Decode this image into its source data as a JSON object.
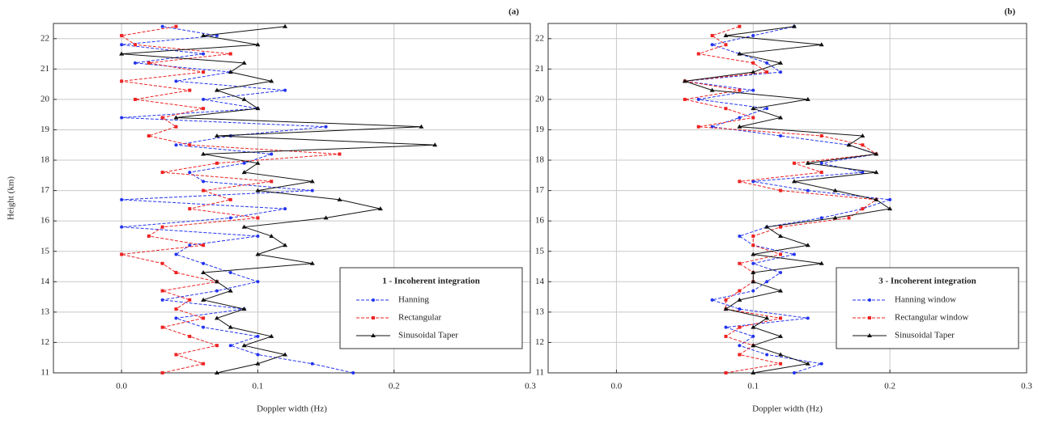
{
  "chart_data": [
    {
      "type": "line",
      "panel_label": "(a)",
      "xlabel": "Doppler width (Hz)",
      "ylabel": "Height (km)",
      "legend_title": "1 - Incoherent integration",
      "legend": "lower right",
      "grid": true,
      "xlim": [
        -0.05,
        0.3
      ],
      "xticks": [
        {
          "value": 0,
          "label": "0.0"
        },
        0.1,
        0.2,
        0.3
      ],
      "ylim": [
        11,
        22.5
      ],
      "yticks": [
        11,
        12,
        13,
        14,
        15,
        16,
        17,
        18,
        19,
        20,
        21,
        22
      ],
      "y": [
        11,
        11.3,
        11.6,
        11.9,
        12.2,
        12.5,
        12.8,
        13.1,
        13.4,
        13.7,
        14,
        14.3,
        14.6,
        14.9,
        15.2,
        15.5,
        15.8,
        16.1,
        16.4,
        16.7,
        17,
        17.3,
        17.6,
        17.9,
        18.2,
        18.5,
        18.8,
        19.1,
        19.4,
        19.7,
        20,
        20.3,
        20.6,
        20.9,
        21.2,
        21.5,
        21.8,
        22.1,
        22.4
      ],
      "series": [
        {
          "name": "Hanning",
          "color": "#2233ee",
          "values": [
            0.17,
            0.14,
            0.1,
            0.08,
            0.1,
            0.06,
            0.04,
            0.09,
            0.03,
            0.07,
            0.1,
            0.08,
            0.06,
            0.04,
            0.05,
            0.1,
            0.0,
            0.08,
            0.12,
            0.0,
            0.14,
            0.06,
            0.05,
            0.09,
            0.11,
            0.04,
            0.08,
            0.15,
            0.0,
            0.1,
            0.06,
            0.12,
            0.04,
            0.08,
            0.01,
            0.06,
            0.0,
            0.07,
            0.03
          ]
        },
        {
          "name": "Rectangular",
          "color": "#ee2222",
          "values": [
            0.03,
            0.06,
            0.04,
            0.07,
            0.05,
            0.03,
            0.06,
            0.04,
            0.05,
            0.03,
            0.07,
            0.04,
            0.03,
            0.0,
            0.06,
            0.02,
            0.03,
            0.1,
            0.05,
            0.08,
            0.06,
            0.11,
            0.03,
            0.07,
            0.16,
            0.05,
            0.02,
            0.04,
            0.03,
            0.06,
            0.01,
            0.05,
            0.0,
            0.06,
            0.02,
            0.08,
            0.01,
            0.0,
            0.04
          ]
        },
        {
          "name": "Sinusoidal Taper",
          "color": "#111111",
          "values": [
            0.07,
            0.1,
            0.12,
            0.09,
            0.11,
            0.08,
            0.07,
            0.09,
            0.06,
            0.08,
            0.07,
            0.06,
            0.14,
            0.1,
            0.12,
            0.11,
            0.09,
            0.15,
            0.19,
            0.16,
            0.1,
            0.14,
            0.09,
            0.1,
            0.06,
            0.23,
            0.07,
            0.22,
            0.04,
            0.1,
            0.09,
            0.07,
            0.11,
            0.08,
            0.09,
            0.0,
            0.1,
            0.06,
            0.12
          ]
        }
      ]
    },
    {
      "type": "line",
      "panel_label": "(b)",
      "xlabel": "Doppler width (Hz)",
      "legend_title": "3 - Incoherent integration",
      "legend": "lower right",
      "grid": true,
      "xlim": [
        -0.05,
        0.3
      ],
      "xticks": [
        {
          "value": 0,
          "label": "0.0"
        },
        0.1,
        0.2,
        0.3
      ],
      "ylim": [
        11,
        22.5
      ],
      "yticks": [
        11,
        12,
        13,
        14,
        15,
        16,
        17,
        18,
        19,
        20,
        21,
        22
      ],
      "y": [
        11,
        11.3,
        11.6,
        11.9,
        12.2,
        12.5,
        12.8,
        13.1,
        13.4,
        13.7,
        14,
        14.3,
        14.6,
        14.9,
        15.2,
        15.5,
        15.8,
        16.1,
        16.4,
        16.7,
        17,
        17.3,
        17.6,
        17.9,
        18.2,
        18.5,
        18.8,
        19.1,
        19.4,
        19.7,
        20,
        20.3,
        20.6,
        20.9,
        21.2,
        21.5,
        21.8,
        22.1,
        22.4
      ],
      "series": [
        {
          "name": "Hanning window",
          "color": "#2233ee",
          "values": [
            0.13,
            0.15,
            0.11,
            0.09,
            0.1,
            0.08,
            0.14,
            0.09,
            0.07,
            0.1,
            0.11,
            0.12,
            0.1,
            0.13,
            0.1,
            0.09,
            0.11,
            0.15,
            0.18,
            0.2,
            0.14,
            0.1,
            0.18,
            0.15,
            0.19,
            0.17,
            0.12,
            0.07,
            0.09,
            0.11,
            0.06,
            0.1,
            0.05,
            0.12,
            0.11,
            0.09,
            0.07,
            0.1,
            0.13
          ]
        },
        {
          "name": "Rectangular window",
          "color": "#ee2222",
          "values": [
            0.08,
            0.12,
            0.09,
            0.1,
            0.08,
            0.09,
            0.12,
            0.08,
            0.08,
            0.09,
            0.1,
            0.1,
            0.09,
            0.12,
            0.1,
            0.1,
            0.12,
            0.17,
            0.18,
            0.19,
            0.12,
            0.09,
            0.15,
            0.13,
            0.19,
            0.18,
            0.15,
            0.06,
            0.1,
            0.08,
            0.05,
            0.09,
            0.05,
            0.11,
            0.1,
            0.06,
            0.08,
            0.07,
            0.09
          ]
        },
        {
          "name": "Sinusoidal Taper",
          "color": "#111111",
          "values": [
            0.1,
            0.14,
            0.12,
            0.1,
            0.12,
            0.1,
            0.11,
            0.08,
            0.09,
            0.12,
            0.1,
            0.1,
            0.15,
            0.1,
            0.14,
            0.12,
            0.11,
            0.16,
            0.2,
            0.19,
            0.16,
            0.13,
            0.19,
            0.14,
            0.19,
            0.17,
            0.18,
            0.09,
            0.12,
            0.1,
            0.14,
            0.07,
            0.05,
            0.1,
            0.12,
            0.09,
            0.15,
            0.08,
            0.13
          ]
        }
      ]
    }
  ]
}
